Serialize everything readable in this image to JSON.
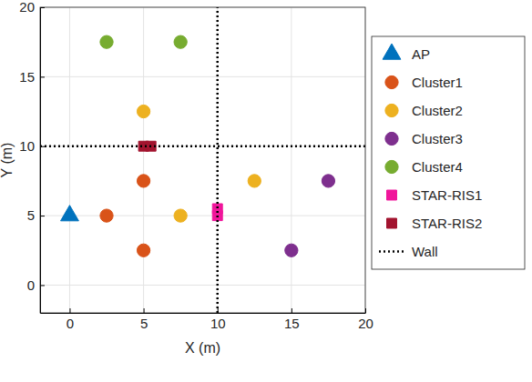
{
  "chart_data": {
    "type": "scatter",
    "x_label": "X (m)",
    "y_label": "Y (m)",
    "xlim": [
      -2,
      20
    ],
    "xticks": [
      0,
      5,
      10,
      15,
      20
    ],
    "ylim": [
      -2,
      20
    ],
    "yticks": [
      0,
      5,
      10,
      15,
      20
    ],
    "grid": true,
    "legend": "right",
    "series": [
      {
        "name": "AP",
        "color": "#0072BD",
        "type": "scatter",
        "marker": "triangle",
        "x": [
          0
        ],
        "values": [
          5
        ]
      },
      {
        "name": "Cluster1",
        "color": "#D95319",
        "type": "scatter",
        "marker": "circle",
        "x": [
          2.5,
          5,
          5
        ],
        "values": [
          5,
          7.5,
          2.5
        ]
      },
      {
        "name": "Cluster2",
        "color": "#EDB120",
        "type": "scatter",
        "marker": "circle",
        "x": [
          5,
          7.5,
          12.5
        ],
        "values": [
          12.5,
          5,
          7.5
        ]
      },
      {
        "name": "Cluster3",
        "color": "#7E2F8E",
        "type": "scatter",
        "marker": "circle",
        "x": [
          17.5,
          15
        ],
        "values": [
          7.5,
          2.5
        ]
      },
      {
        "name": "Cluster4",
        "color": "#77AC30",
        "type": "scatter",
        "marker": "circle",
        "x": [
          2.5,
          7.5
        ],
        "values": [
          17.5,
          17.5
        ]
      },
      {
        "name": "STAR-RIS1",
        "color": "#F0169B",
        "type": "scatter",
        "marker": "square",
        "x": [
          10,
          10
        ],
        "values": [
          5,
          5.5
        ]
      },
      {
        "name": "STAR-RIS2",
        "color": "#A2142F",
        "type": "scatter",
        "marker": "square",
        "x": [
          5,
          5.5
        ],
        "values": [
          10,
          10
        ]
      },
      {
        "name": "Wall",
        "color": "#000000",
        "type": "line",
        "line_style": "dotted",
        "x": [
          10,
          10,
          null,
          -2,
          20
        ],
        "values": [
          -2,
          20,
          null,
          10,
          10
        ]
      }
    ]
  }
}
